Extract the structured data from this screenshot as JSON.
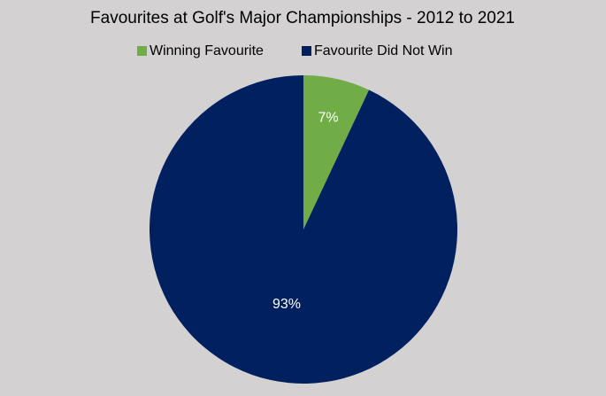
{
  "chart_data": {
    "type": "pie",
    "title": "Favourites at Golf's Major Championships - 2012 to 2021",
    "categories": [
      "Winning Favourite",
      "Favourite Did Not Win"
    ],
    "values": [
      7,
      93
    ],
    "value_labels": [
      "7%",
      "93%"
    ],
    "colors": [
      "#70ad47",
      "#002060"
    ],
    "legend": "top"
  }
}
